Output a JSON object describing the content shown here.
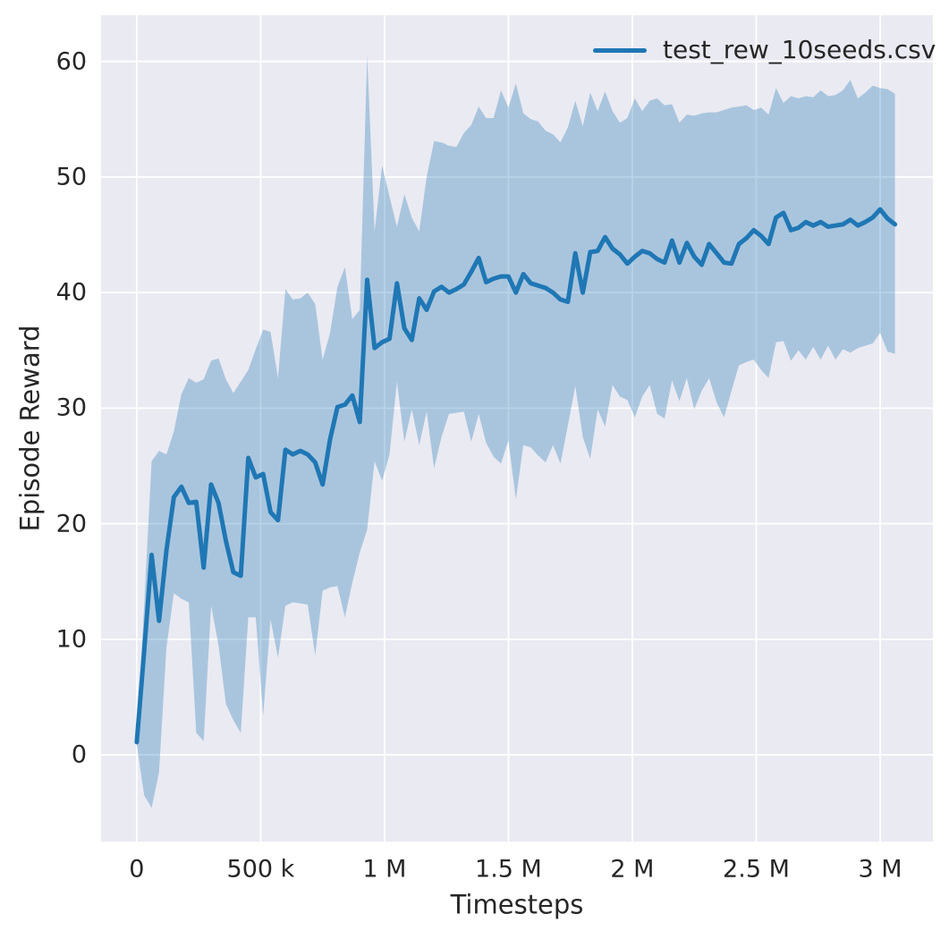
{
  "chart_data": {
    "type": "line",
    "title": "",
    "xlabel": "Timesteps",
    "ylabel": "Episode Reward",
    "legend": [
      "test_rew_10seeds.csv"
    ],
    "legend_position": "upper right",
    "grid": true,
    "xlim": [
      -144000,
      3213000
    ],
    "ylim": [
      -7.5,
      64.0
    ],
    "xticks": [
      {
        "value": 0,
        "label": "0"
      },
      {
        "value": 500000,
        "label": "500 k"
      },
      {
        "value": 1000000,
        "label": "1 M"
      },
      {
        "value": 1500000,
        "label": "1.5 M"
      },
      {
        "value": 2000000,
        "label": "2 M"
      },
      {
        "value": 2500000,
        "label": "2.5 M"
      },
      {
        "value": 3000000,
        "label": "3 M"
      }
    ],
    "yticks": [
      {
        "value": 0,
        "label": "0"
      },
      {
        "value": 10,
        "label": "10"
      },
      {
        "value": 20,
        "label": "20"
      },
      {
        "value": 30,
        "label": "30"
      },
      {
        "value": 40,
        "label": "40"
      },
      {
        "value": 50,
        "label": "50"
      },
      {
        "value": 60,
        "label": "60"
      }
    ],
    "colors": {
      "line": "#1f77b4",
      "band_alpha": 0.32,
      "plot_bg": "#eaeaf2",
      "grid": "#ffffff",
      "text": "#262626",
      "figure_bg": "#ffffff"
    },
    "series": [
      {
        "name": "test_rew_10seeds.csv",
        "x": [
          0,
          30000,
          60000,
          90000,
          120000,
          150000,
          180000,
          210000,
          240000,
          270000,
          300000,
          330000,
          360000,
          390000,
          420000,
          450000,
          480000,
          510000,
          540000,
          570000,
          600000,
          630000,
          660000,
          690000,
          720000,
          750000,
          780000,
          810000,
          840000,
          870000,
          900000,
          930000,
          960000,
          990000,
          1020000,
          1050000,
          1080000,
          1110000,
          1140000,
          1170000,
          1200000,
          1230000,
          1260000,
          1290000,
          1320000,
          1350000,
          1380000,
          1410000,
          1440000,
          1470000,
          1500000,
          1530000,
          1560000,
          1590000,
          1620000,
          1650000,
          1680000,
          1710000,
          1740000,
          1770000,
          1800000,
          1830000,
          1860000,
          1890000,
          1920000,
          1950000,
          1980000,
          2010000,
          2040000,
          2070000,
          2100000,
          2130000,
          2160000,
          2190000,
          2220000,
          2250000,
          2280000,
          2310000,
          2340000,
          2370000,
          2400000,
          2430000,
          2460000,
          2490000,
          2520000,
          2550000,
          2580000,
          2610000,
          2640000,
          2670000,
          2700000,
          2730000,
          2760000,
          2790000,
          2820000,
          2850000,
          2880000,
          2910000,
          2940000,
          2970000,
          3000000,
          3030000,
          3060000
        ],
        "values": [
          1.1,
          9.0,
          17.3,
          11.6,
          17.7,
          22.3,
          23.2,
          21.8,
          21.9,
          16.2,
          23.4,
          21.8,
          18.5,
          15.8,
          15.5,
          25.7,
          24.0,
          24.3,
          21.0,
          20.3,
          26.4,
          26.0,
          26.3,
          26.0,
          25.3,
          23.4,
          27.3,
          30.1,
          30.3,
          31.1,
          28.8,
          41.1,
          35.2,
          35.7,
          36.0,
          40.8,
          36.9,
          35.9,
          39.5,
          38.5,
          40.1,
          40.5,
          40.0,
          40.3,
          40.7,
          41.8,
          43.0,
          40.9,
          41.2,
          41.4,
          41.4,
          40.0,
          41.6,
          40.8,
          40.6,
          40.4,
          40.0,
          39.4,
          39.2,
          43.4,
          40.0,
          43.5,
          43.6,
          44.8,
          43.8,
          43.3,
          42.5,
          43.1,
          43.6,
          43.4,
          42.9,
          42.6,
          44.5,
          42.6,
          44.3,
          43.1,
          42.4,
          44.2,
          43.4,
          42.6,
          42.5,
          44.2,
          44.7,
          45.4,
          44.9,
          44.2,
          46.5,
          46.9,
          45.4,
          45.6,
          46.1,
          45.8,
          46.1,
          45.7,
          45.8,
          45.9,
          46.3,
          45.8,
          46.1,
          46.5,
          47.2,
          46.4,
          45.9
        ],
        "lower": [
          0.9,
          -3.5,
          -4.6,
          -1.5,
          9.3,
          14.0,
          13.5,
          13.2,
          1.9,
          1.2,
          12.9,
          9.5,
          4.4,
          3.0,
          1.9,
          11.9,
          11.9,
          3.4,
          11.7,
          8.4,
          12.9,
          13.2,
          13.1,
          13.0,
          8.6,
          14.2,
          14.5,
          14.6,
          11.9,
          14.9,
          17.5,
          19.5,
          25.4,
          23.7,
          26.0,
          32.3,
          27.1,
          29.9,
          26.8,
          29.7,
          24.8,
          27.5,
          29.5,
          29.6,
          29.7,
          27.1,
          29.5,
          27.0,
          25.8,
          25.2,
          27.2,
          22.1,
          26.8,
          26.6,
          25.9,
          25.3,
          26.8,
          25.2,
          28.5,
          31.9,
          27.5,
          25.6,
          29.9,
          28.4,
          32.0,
          31.0,
          30.7,
          29.2,
          31.0,
          32.0,
          29.5,
          29.1,
          32.4,
          30.6,
          32.6,
          29.9,
          31.5,
          32.6,
          30.5,
          29.2,
          31.5,
          33.7,
          34.0,
          34.2,
          33.3,
          32.6,
          35.7,
          35.8,
          34.1,
          35.0,
          34.2,
          35.3,
          34.2,
          35.4,
          34.2,
          35.1,
          34.8,
          35.2,
          35.4,
          35.6,
          36.5,
          34.9,
          34.7
        ],
        "upper": [
          1.3,
          13.0,
          25.4,
          26.3,
          26.0,
          28.0,
          31.2,
          32.6,
          32.2,
          32.5,
          34.1,
          34.3,
          32.5,
          31.3,
          32.3,
          33.3,
          35.1,
          36.8,
          36.6,
          32.6,
          40.3,
          39.4,
          39.5,
          40.0,
          39.0,
          34.2,
          36.5,
          40.5,
          42.2,
          37.7,
          38.5,
          60.5,
          45.3,
          51.0,
          48.3,
          45.7,
          48.5,
          46.5,
          45.3,
          50.0,
          53.1,
          53.0,
          52.7,
          52.6,
          53.8,
          54.5,
          56.1,
          55.1,
          55.1,
          57.5,
          56.0,
          58.1,
          55.5,
          55.0,
          54.8,
          54.0,
          53.7,
          53.0,
          54.3,
          56.6,
          54.4,
          57.3,
          55.7,
          57.4,
          55.7,
          54.7,
          55.1,
          56.8,
          55.7,
          56.6,
          56.8,
          56.2,
          56.3,
          54.7,
          55.4,
          55.3,
          55.5,
          55.6,
          55.6,
          55.8,
          56.0,
          56.1,
          56.2,
          55.8,
          56.0,
          55.4,
          57.7,
          56.4,
          57.0,
          56.8,
          57.0,
          56.9,
          57.5,
          57.0,
          57.1,
          57.5,
          58.4,
          56.8,
          57.3,
          57.9,
          57.7,
          57.6,
          57.2
        ]
      }
    ]
  }
}
